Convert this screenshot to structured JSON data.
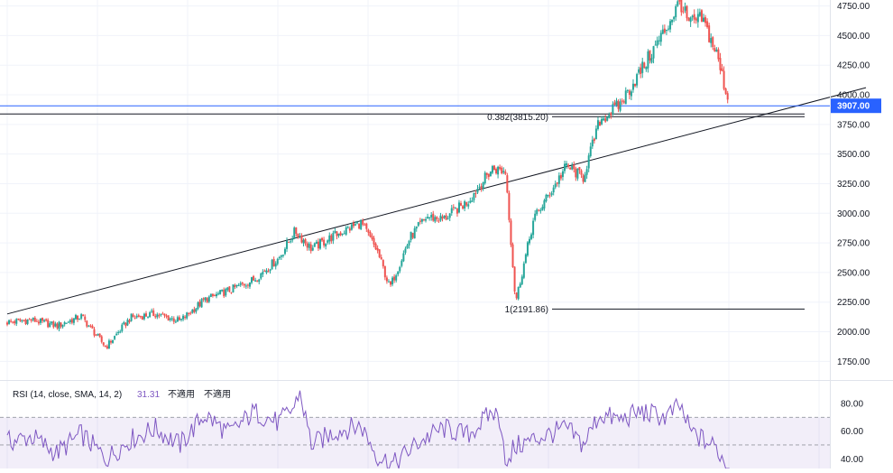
{
  "chart_data": [
    {
      "type": "candlestick",
      "title": "",
      "price_axis": {
        "ylim": [
          1600,
          4800
        ],
        "ticks": [
          "4750.00",
          "4500.00",
          "4250.00",
          "4000.00",
          "3750.00",
          "3500.00",
          "3250.00",
          "3000.00",
          "2750.00",
          "2500.00",
          "2250.00",
          "2000.00",
          "1750.00"
        ],
        "tick_values": [
          4750,
          4500,
          4250,
          4000,
          3750,
          3500,
          3250,
          3000,
          2750,
          2500,
          2250,
          2000,
          1750
        ]
      },
      "current_price": {
        "value": 3907,
        "label": "3907.00"
      },
      "fibonacci": [
        {
          "ratio": "0.382",
          "price": 3815.2,
          "label": "0.382(3815.20)"
        },
        {
          "ratio": "1",
          "price": 2191.86,
          "label": "1(2191.86)"
        }
      ],
      "trendline": {
        "x": [
          0,
          1000
        ],
        "y": [
          2150,
          4060
        ]
      },
      "x": [
        0,
        30,
        60,
        90,
        120,
        150,
        180,
        210,
        240,
        270,
        300,
        330,
        350,
        370,
        400,
        430,
        450,
        465,
        490,
        510,
        530,
        560,
        590,
        606,
        618,
        640,
        680,
        700,
        720,
        745,
        770,
        800,
        818,
        828,
        845,
        862,
        878
      ],
      "close": [
        2080,
        2100,
        2050,
        2130,
        1870,
        2120,
        2150,
        2090,
        2270,
        2350,
        2440,
        2620,
        2850,
        2700,
        2820,
        2920,
        2680,
        2370,
        2800,
        2970,
        2950,
        3100,
        3380,
        3350,
        2250,
        2950,
        3400,
        3300,
        3780,
        3920,
        4200,
        4550,
        4790,
        4600,
        4640,
        4350,
        3907
      ],
      "colors": {
        "up": "#26a69a",
        "down": "#ef5350"
      }
    },
    {
      "type": "line",
      "title": "RSI (14, close, SMA, 14, 2)",
      "value_label": "31.31",
      "extra_labels": [
        "不適用",
        "不適用"
      ],
      "ylim": [
        33,
        95
      ],
      "ticks": [
        "80.00",
        "60.00",
        "40.00"
      ],
      "tick_values": [
        80,
        60,
        40
      ],
      "band": [
        30,
        70
      ],
      "midline": 50,
      "x": [
        0,
        30,
        60,
        90,
        120,
        150,
        180,
        210,
        240,
        270,
        300,
        330,
        350,
        355,
        370,
        400,
        430,
        450,
        470,
        500,
        530,
        560,
        590,
        600,
        608,
        615,
        640,
        680,
        700,
        720,
        745,
        770,
        800,
        818,
        830,
        845,
        862,
        878
      ],
      "values": [
        52,
        56,
        44,
        58,
        40,
        54,
        62,
        50,
        72,
        58,
        74,
        66,
        78,
        90,
        50,
        60,
        64,
        42,
        36,
        52,
        62,
        57,
        74,
        68,
        30,
        48,
        54,
        62,
        50,
        72,
        68,
        74,
        70,
        78,
        60,
        54,
        48,
        31.31
      ],
      "color": "#7e57c2"
    }
  ]
}
